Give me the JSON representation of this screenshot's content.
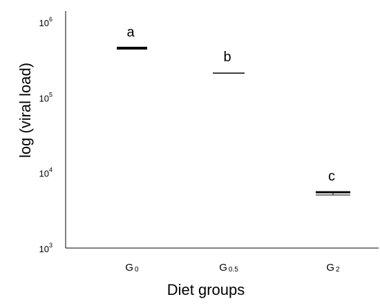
{
  "chart_data": {
    "type": "scatter",
    "title": "",
    "xlabel": "Diet groups",
    "ylabel": "log (viral load)",
    "yscale": "log",
    "ylim": [
      1000,
      1000000
    ],
    "yticks": [
      {
        "base": "10",
        "exp": "3",
        "value": 1000
      },
      {
        "base": "10",
        "exp": "4",
        "value": 10000
      },
      {
        "base": "10",
        "exp": "5",
        "value": 100000
      },
      {
        "base": "10",
        "exp": "6",
        "value": 1000000
      }
    ],
    "categories": [
      {
        "main": "G",
        "sub": "0"
      },
      {
        "main": "G",
        "sub": "0.5"
      },
      {
        "main": "G",
        "sub": "2"
      }
    ],
    "points": [
      {
        "value": 450000,
        "letter": "a"
      },
      {
        "value": 210000,
        "letter": "b"
      },
      {
        "value": 5500,
        "letter": "c"
      }
    ],
    "grid": false,
    "legend": "none",
    "color": "#000000"
  }
}
